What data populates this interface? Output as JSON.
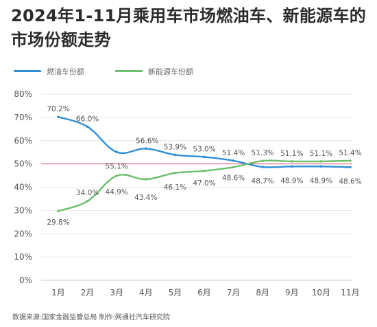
{
  "title": "2024年1-11月乘用车市场燃油车、新能源车的市场份额走势",
  "footer": "数据来源:国家金融监管总局   制作:网通社汽车研究院",
  "colors": {
    "fuel": "#2f8fd6",
    "nev": "#6cbf6c",
    "reference": "#e0506a",
    "grid": "#e6e6e6"
  },
  "chart_data": {
    "type": "line",
    "title": "2024年1-11月乘用车市场燃油车、新能源车的市场份额走势",
    "categories": [
      "1月",
      "2月",
      "3月",
      "4月",
      "5月",
      "6月",
      "7月",
      "8月",
      "9月",
      "10月",
      "11月"
    ],
    "y_ticks": [
      "0%",
      "10%",
      "20%",
      "30%",
      "40%",
      "50%",
      "60%",
      "70%",
      "80%"
    ],
    "ylim": [
      0,
      80
    ],
    "unit": "%",
    "reference_line": 50,
    "grid": true,
    "legend_position": "top-left",
    "series": [
      {
        "name": "燃油车份额",
        "color": "#2f8fd6",
        "values": [
          70.2,
          66.0,
          55.1,
          56.6,
          53.9,
          53.0,
          51.4,
          48.7,
          48.9,
          48.9,
          48.6
        ],
        "labels": [
          "70.2%",
          "66.0%",
          "55.1%",
          "56.6%",
          "53.9%",
          "53.0%",
          "51.4%",
          "48.7%",
          "48.9%",
          "48.9%",
          "48.6%"
        ]
      },
      {
        "name": "新能源车份额",
        "color": "#6cbf6c",
        "values": [
          29.8,
          34.0,
          44.9,
          43.4,
          46.1,
          47.0,
          48.6,
          51.3,
          51.1,
          51.1,
          51.4
        ],
        "labels": [
          "29.8%",
          "34.0%",
          "44.9%",
          "43.4%",
          "46.1%",
          "47.0%",
          "48.6%",
          "51.3%",
          "51.1%",
          "51.1%",
          "51.4%"
        ]
      }
    ]
  }
}
